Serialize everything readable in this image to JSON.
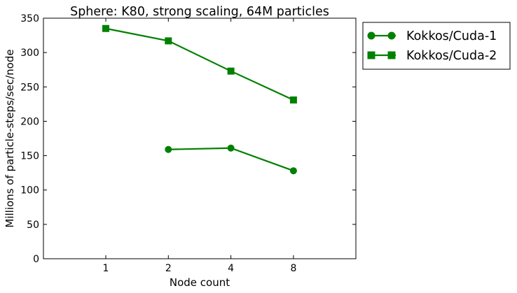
{
  "chart_data": {
    "type": "line",
    "title": "Sphere: K80, strong scaling, 64M particles",
    "xlabel": "Node count",
    "ylabel": "Millions of particle-steps/sec/node",
    "categories": [
      "1",
      "2",
      "4",
      "8"
    ],
    "ylim": [
      0,
      350
    ],
    "yticks": [
      0,
      50,
      100,
      150,
      200,
      250,
      300,
      350
    ],
    "grid": false,
    "legend_position": "outside-right-top",
    "series": [
      {
        "name": "Kokkos/Cuda-1",
        "marker": "circle",
        "color": "#008000",
        "values": [
          null,
          159,
          161,
          128
        ]
      },
      {
        "name": "Kokkos/Cuda-2",
        "marker": "square",
        "color": "#008000",
        "values": [
          335,
          317,
          273,
          231
        ]
      }
    ]
  }
}
